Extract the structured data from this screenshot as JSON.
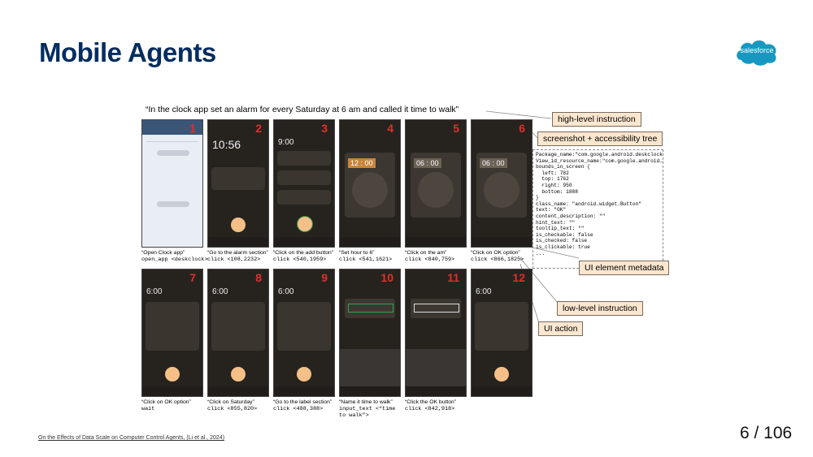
{
  "slide": {
    "title": "Mobile Agents",
    "logo_text": "salesforce",
    "instruction": "“In the clock app set an alarm for every Saturday at 6 am and called it time to walk”",
    "labels": {
      "high_level": "high-level instruction",
      "screenshot": "screenshot + accessibility tree",
      "ui_meta": "UI element metadata",
      "low_level": "low-level instruction",
      "ui_action": "UI action"
    },
    "metadata_text": "Package_name:\"com.google.android.deskclock\"\nView_id_resource_name:\"com.google.android…\"\nbounds_in_screen {\n  left: 782\n  top: 1762\n  right: 950\n  bottom: 1888\n}\nclass_name: \"android.widget.Button\"\ntext: \"OK\"\ncontent_description: \"\"\nhint_text: \"\"\ntooltip_text: \"\"\nis_checkable: false\nis_checked: false\nis_clickable: true\n...",
    "screens": [
      {
        "num": "1",
        "time": "",
        "low": "“Open Clock app”",
        "action": "open_app <deskclock>"
      },
      {
        "num": "2",
        "time": "10:56",
        "low": "“Go to the alarm section”",
        "action": "click <108,2232>"
      },
      {
        "num": "3",
        "time": "9:00",
        "low": "“Click on the add button”",
        "action": "click <540,1959>"
      },
      {
        "num": "4",
        "time": "12 : 00",
        "low": "“Set hour to 6”",
        "action": "click <541,1621>"
      },
      {
        "num": "5",
        "time": "06 : 00",
        "low": "“Click on the am”",
        "action": "click <840,759>"
      },
      {
        "num": "6",
        "time": "06 : 00",
        "low": "“Click on OK option”",
        "action": "click <866,1825>"
      },
      {
        "num": "7",
        "time": "6:00",
        "low": "“Click on OK option”",
        "action": "wait"
      },
      {
        "num": "8",
        "time": "6:00",
        "low": "“Click on Saturday”",
        "action": "click <855,820>"
      },
      {
        "num": "9",
        "time": "6:00",
        "low": "“Go to the label section”",
        "action": "click <488,388>"
      },
      {
        "num": "10",
        "time": "",
        "low": "“Name it time to walk”",
        "action": "input_text <“time to walk”>"
      },
      {
        "num": "11",
        "time": "",
        "low": "“Click the OK button”",
        "action": "click <842,918>"
      },
      {
        "num": "12",
        "time": "6:00",
        "low": "",
        "action": ""
      }
    ],
    "footer": "On the Effects of Data Scale on Computer Control Agents, (Li et al., 2024)",
    "page_number": "6 / 106"
  }
}
